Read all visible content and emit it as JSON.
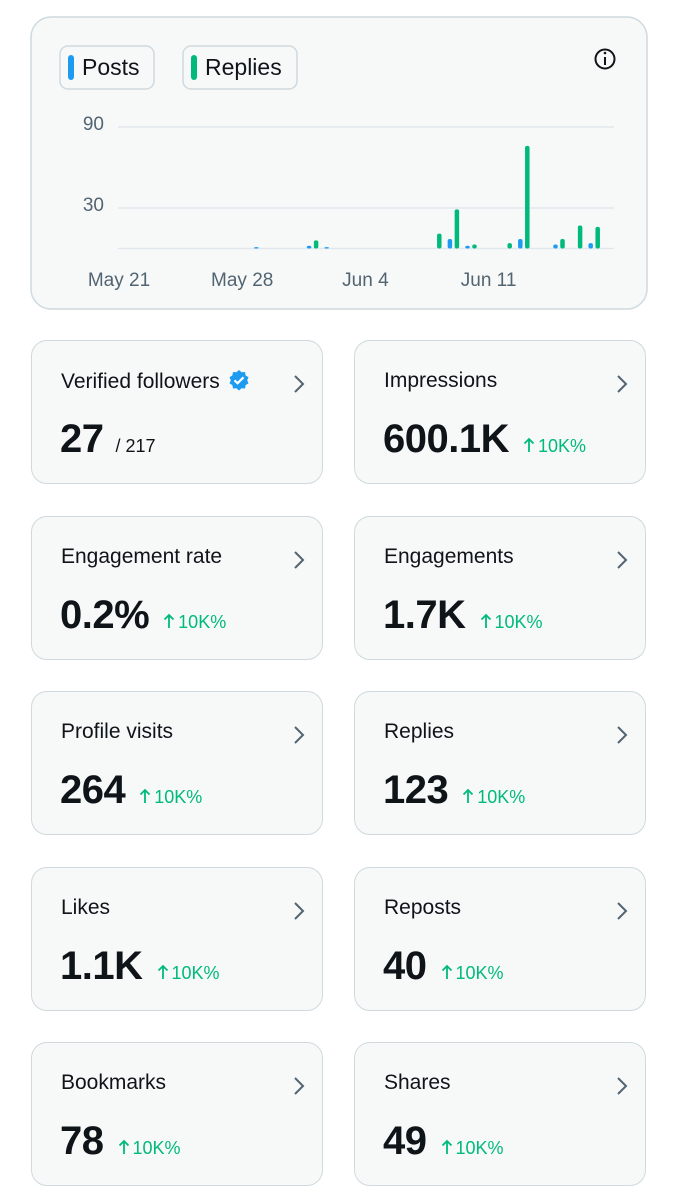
{
  "chart_data": {
    "type": "bar",
    "categories": [
      "May 21",
      null,
      null,
      null,
      null,
      null,
      null,
      "May 28",
      null,
      null,
      null,
      null,
      null,
      null,
      "Jun 4",
      null,
      null,
      null,
      null,
      null,
      null,
      "Jun 11",
      null,
      null,
      null,
      null,
      null,
      null
    ],
    "series": [
      {
        "name": "Posts",
        "color": "#1d9bf0",
        "values": [
          0,
          0,
          0,
          0,
          0,
          0,
          0,
          0,
          1,
          0,
          0,
          2,
          1,
          0,
          0,
          0,
          0,
          0,
          0,
          7,
          2,
          0,
          0,
          7,
          0,
          3,
          0,
          4
        ]
      },
      {
        "name": "Replies",
        "color": "#00ba7c",
        "values": [
          0,
          0,
          0,
          0,
          0,
          0,
          0,
          0,
          0,
          0,
          0,
          6,
          0,
          0,
          0,
          0,
          0,
          0,
          11,
          29,
          3,
          0,
          4,
          76,
          0,
          7,
          17,
          16
        ]
      }
    ],
    "ylim": [
      0,
      90
    ],
    "yticks": [
      30,
      90
    ],
    "grid": true
  },
  "cards": [
    {
      "label": "Verified followers",
      "value": "27",
      "total": "/ 217",
      "verified": true
    },
    {
      "label": "Impressions",
      "value": "600.1K",
      "change": "10K%"
    },
    {
      "label": "Engagement rate",
      "value": "0.2%",
      "change": "10K%"
    },
    {
      "label": "Engagements",
      "value": "1.7K",
      "change": "10K%"
    },
    {
      "label": "Profile visits",
      "value": "264",
      "change": "10K%"
    },
    {
      "label": "Replies",
      "value": "123",
      "change": "10K%"
    },
    {
      "label": "Likes",
      "value": "1.1K",
      "change": "10K%"
    },
    {
      "label": "Reposts",
      "value": "40",
      "change": "10K%"
    },
    {
      "label": "Bookmarks",
      "value": "78",
      "change": "10K%"
    },
    {
      "label": "Shares",
      "value": "49",
      "change": "10K%"
    }
  ]
}
